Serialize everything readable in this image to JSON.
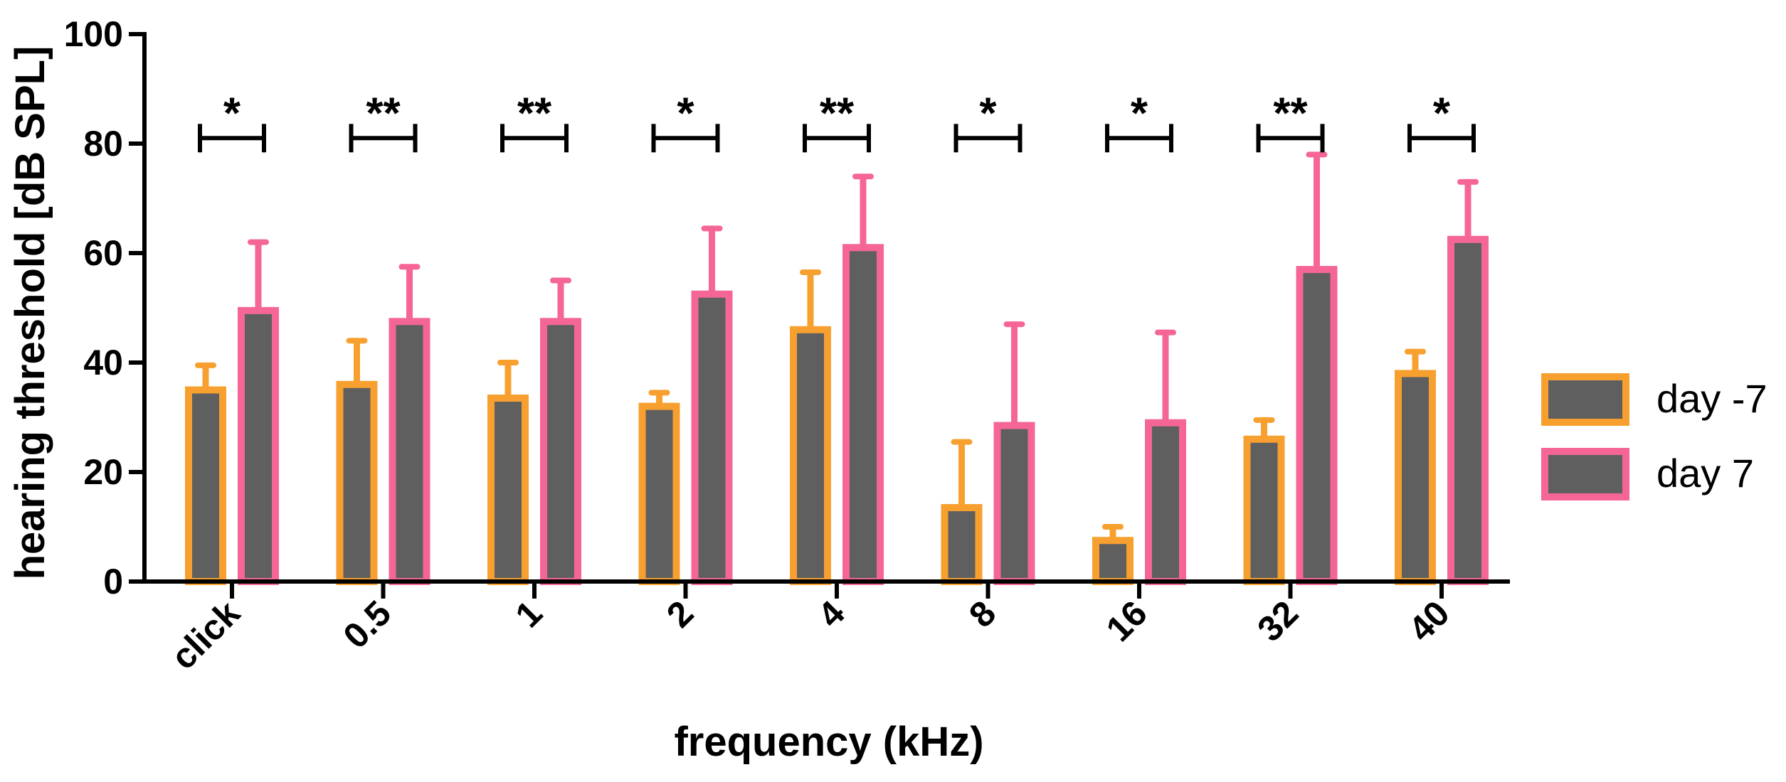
{
  "chart_data": {
    "type": "bar",
    "title": "",
    "xlabel": "frequency (kHz)",
    "ylabel": "hearing threshold [dB SPL]",
    "ylim": [
      0,
      100
    ],
    "yticks": [
      0,
      20,
      40,
      60,
      80,
      100
    ],
    "categories": [
      "click",
      "0.5",
      "1",
      "2",
      "4",
      "8",
      "16",
      "32",
      "40"
    ],
    "series": [
      {
        "name": "day -7",
        "edge_color": "#F7A030",
        "fill_color": "#5f5f5f",
        "values": [
          35,
          36,
          33.5,
          32,
          46,
          13.5,
          7.5,
          26,
          38
        ],
        "errors": [
          4.5,
          8,
          6.5,
          2.5,
          10.5,
          12,
          2.5,
          3.5,
          4
        ]
      },
      {
        "name": "day 7",
        "edge_color": "#F56697",
        "fill_color": "#5f5f5f",
        "values": [
          49.5,
          47.5,
          47.5,
          52.5,
          61,
          28.5,
          29,
          57,
          62.5
        ],
        "errors": [
          12.5,
          10,
          7.5,
          12,
          13,
          18.5,
          16.5,
          21,
          10.5
        ]
      }
    ],
    "significance": [
      {
        "category": "click",
        "marker": "*",
        "level": 81
      },
      {
        "category": "0.5",
        "marker": "**",
        "level": 81
      },
      {
        "category": "1",
        "marker": "**",
        "level": 81
      },
      {
        "category": "2",
        "marker": "*",
        "level": 81
      },
      {
        "category": "4",
        "marker": "**",
        "level": 81
      },
      {
        "category": "8",
        "marker": "*",
        "level": 81
      },
      {
        "category": "16",
        "marker": "*",
        "level": 81
      },
      {
        "category": "32",
        "marker": "**",
        "level": 81
      },
      {
        "category": "40",
        "marker": "*",
        "level": 81
      }
    ],
    "legend_position": "right"
  }
}
